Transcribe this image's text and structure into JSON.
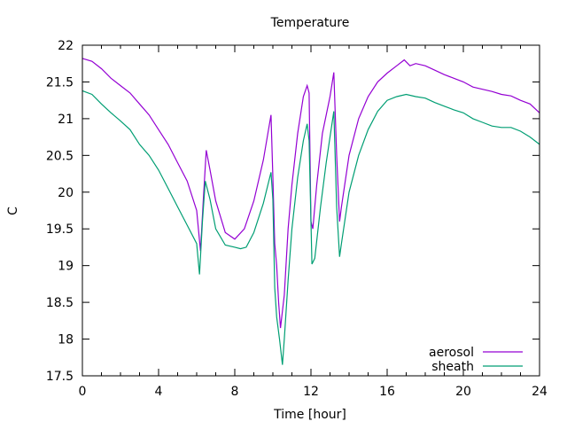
{
  "chart_data": {
    "type": "line",
    "title": "Temperature",
    "xlabel": "Time [hour]",
    "ylabel": "C",
    "xlim": [
      0,
      24
    ],
    "ylim": [
      17.5,
      22
    ],
    "xticks": [
      0,
      4,
      8,
      12,
      16,
      20,
      24
    ],
    "yticks": [
      17.5,
      18,
      18.5,
      19,
      19.5,
      20,
      20.5,
      21,
      21.5,
      22
    ],
    "ytick_labels": [
      "17.5",
      "18",
      "18.5",
      "19",
      "19.5",
      "20",
      "20.5",
      "21",
      "21.5",
      "22"
    ],
    "grid": false,
    "legend_position": "bottom-right",
    "series": [
      {
        "name": "aerosol",
        "color": "#9400d3",
        "x": [
          0,
          0.5,
          1,
          1.5,
          2,
          2.5,
          3,
          3.5,
          4,
          4.5,
          5,
          5.5,
          6,
          6.2,
          6.35,
          6.5,
          6.7,
          7,
          7.5,
          8,
          8.5,
          9,
          9.5,
          9.9,
          10.0,
          10.1,
          10.2,
          10.3,
          10.4,
          10.6,
          10.8,
          11,
          11.3,
          11.6,
          11.8,
          11.9,
          12.0,
          12.1,
          12.3,
          12.6,
          13,
          13.2,
          13.35,
          13.5,
          13.6,
          14,
          14.5,
          15,
          15.5,
          16,
          16.5,
          16.9,
          17.2,
          17.5,
          18,
          18.5,
          19,
          19.5,
          20,
          20.5,
          21,
          21.5,
          22,
          22.5,
          23,
          23.5,
          24
        ],
        "values": [
          21.82,
          21.78,
          21.68,
          21.55,
          21.45,
          21.35,
          21.2,
          21.05,
          20.85,
          20.65,
          20.4,
          20.15,
          19.75,
          19.2,
          19.9,
          20.57,
          20.3,
          19.88,
          19.45,
          19.36,
          19.5,
          19.88,
          20.44,
          21.05,
          20.2,
          19.3,
          19.0,
          18.5,
          18.15,
          18.6,
          19.5,
          20.1,
          20.8,
          21.3,
          21.45,
          21.35,
          19.6,
          19.5,
          20.1,
          20.8,
          21.3,
          21.63,
          20.5,
          19.6,
          19.8,
          20.5,
          21.0,
          21.3,
          21.5,
          21.62,
          21.72,
          21.8,
          21.72,
          21.75,
          21.72,
          21.66,
          21.6,
          21.55,
          21.5,
          21.43,
          21.4,
          21.37,
          21.33,
          21.31,
          21.25,
          21.2,
          21.08
        ]
      },
      {
        "name": "sheath",
        "color": "#009e73",
        "x": [
          0,
          0.5,
          1,
          1.5,
          2,
          2.5,
          3,
          3.5,
          4,
          4.5,
          5,
          5.5,
          6,
          6.15,
          6.3,
          6.45,
          6.7,
          7,
          7.5,
          8,
          8.3,
          8.6,
          9,
          9.5,
          9.9,
          10.0,
          10.1,
          10.2,
          10.35,
          10.5,
          10.6,
          10.8,
          11,
          11.3,
          11.6,
          11.8,
          11.9,
          12.05,
          12.2,
          12.5,
          12.8,
          13.2,
          13.35,
          13.5,
          13.6,
          14,
          14.5,
          15,
          15.5,
          16,
          16.5,
          17,
          17.5,
          18,
          18.5,
          19,
          19.5,
          20,
          20.5,
          21,
          21.5,
          22,
          22.5,
          23,
          23.5,
          24
        ],
        "values": [
          21.38,
          21.33,
          21.2,
          21.08,
          20.97,
          20.85,
          20.65,
          20.5,
          20.3,
          20.05,
          19.8,
          19.55,
          19.3,
          18.88,
          19.6,
          20.15,
          19.9,
          19.5,
          19.28,
          19.25,
          19.23,
          19.25,
          19.45,
          19.85,
          20.27,
          19.9,
          18.7,
          18.3,
          18.0,
          17.65,
          18.0,
          18.8,
          19.5,
          20.2,
          20.7,
          20.93,
          20.7,
          19.02,
          19.1,
          19.8,
          20.4,
          21.1,
          19.8,
          19.12,
          19.3,
          20.0,
          20.5,
          20.85,
          21.1,
          21.25,
          21.3,
          21.33,
          21.3,
          21.28,
          21.22,
          21.17,
          21.12,
          21.08,
          21.0,
          20.95,
          20.9,
          20.88,
          20.88,
          20.83,
          20.75,
          20.65
        ]
      }
    ]
  }
}
